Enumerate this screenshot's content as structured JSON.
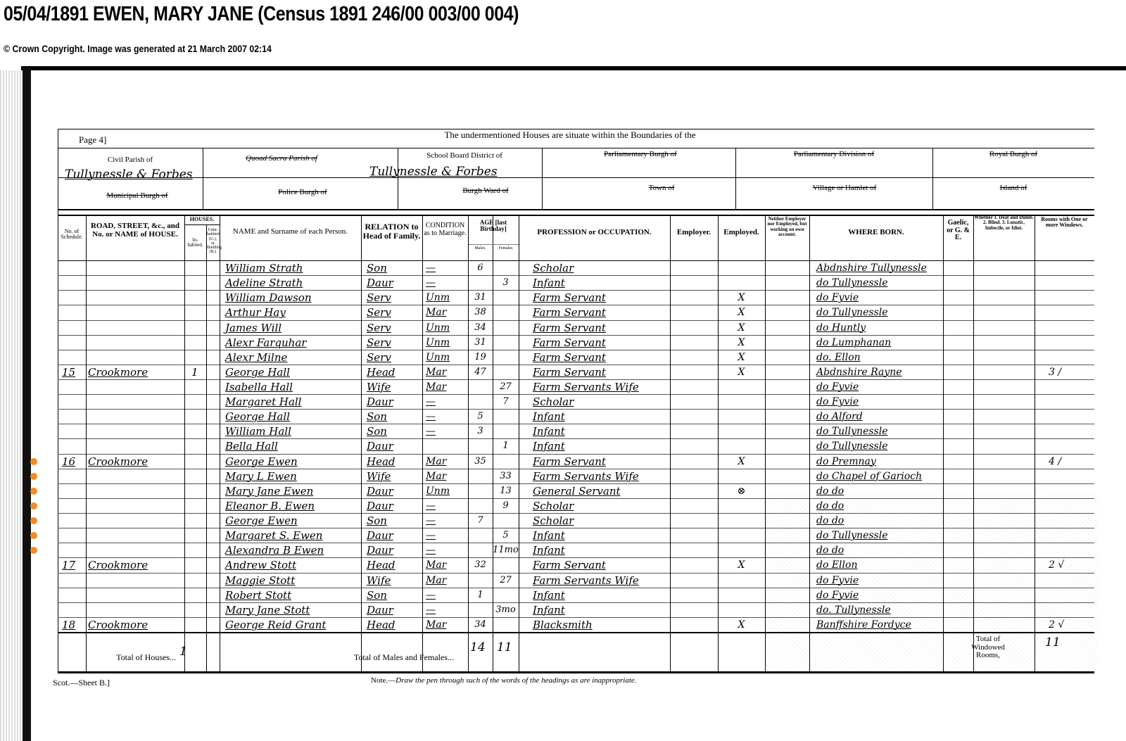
{
  "header": {
    "title": "05/04/1891 EWEN, MARY JANE (Census 1891 246/00 003/00 004)",
    "copyright": "© Crown Copyright. Image was generated at 21 March 2007 02:14"
  },
  "form": {
    "page": "Page 4]",
    "boundaries": "The undermentioned Houses are situate within the Boundaries of the",
    "civil_parish_label": "Civil Parish of",
    "civil_parish_value": "Tullynessle & Forbes",
    "quoad_sacra_label": "Quoad Sacra Parish of",
    "school_board_label": "School Board District of",
    "school_board_value": "Tullynessle & Forbes",
    "parl_burgh_label": "Parliamentary Burgh of",
    "parl_division_label": "Parliamentary Division of",
    "royal_burgh_label": "Royal Burgh of",
    "municipal_burgh_label": "Municipal Burgh of",
    "police_burgh_label": "Police Burgh of",
    "burgh_ward_label": "Burgh Ward of",
    "town_label": "Town of",
    "village_label": "Village or Hamlet of",
    "island_label": "Island of"
  },
  "columns": {
    "schedule": "No. of Schedule.",
    "house": "ROAD, STREET, &c., and No. or NAME of HOUSE.",
    "houses": "HOUSES.",
    "inhabited": "In-habited.",
    "uninhabited": "Unin-habited (U.), or Building (B.)",
    "name": "NAME and Surname of each Person.",
    "relation": "RELATION to Head of Family.",
    "condition": "CONDITION as to Marriage.",
    "age": "AGE [last Birthday]",
    "males": "Males.",
    "females": "Females",
    "occupation": "PROFESSION or OCCUPATION.",
    "employer": "Employer.",
    "employed": "Employed.",
    "neither": "Neither Employer nor Employed, but working on own account.",
    "where_born": "WHERE BORN.",
    "gaelic": "Gaelic, or G. & E.",
    "whether": "Whether 1. Deaf and Dumb. 2. Blind. 3. Lunatic, Imbecile, or Idiot.",
    "rooms": "Rooms with One or more Windows."
  },
  "rows": [
    {
      "schedule": "",
      "house": "",
      "inhabited": "",
      "name": "William Strath",
      "relation": "Son",
      "condition": "—",
      "males": "6",
      "females": "",
      "occupation": "Scholar",
      "employed": "",
      "where_born": "Abdnshire Tullynessle",
      "rooms": ""
    },
    {
      "schedule": "",
      "house": "",
      "inhabited": "",
      "name": "Adeline Strath",
      "relation": "Daur",
      "condition": "—",
      "males": "",
      "females": "3",
      "occupation": "Infant",
      "employed": "",
      "where_born": "do Tullynessle",
      "rooms": ""
    },
    {
      "schedule": "",
      "house": "",
      "inhabited": "",
      "name": "William Dawson",
      "relation": "Serv",
      "condition": "Unm",
      "males": "31",
      "females": "",
      "occupation": "Farm Servant",
      "employed": "X",
      "where_born": "do Fyvie",
      "rooms": ""
    },
    {
      "schedule": "",
      "house": "",
      "inhabited": "",
      "name": "Arthur Hay",
      "relation": "Serv",
      "condition": "Mar",
      "males": "38",
      "females": "",
      "occupation": "Farm Servant",
      "employed": "X",
      "where_born": "do Tullynessle",
      "rooms": ""
    },
    {
      "schedule": "",
      "house": "",
      "inhabited": "",
      "name": "James Will",
      "relation": "Serv",
      "condition": "Unm",
      "males": "34",
      "females": "",
      "occupation": "Farm Servant",
      "employed": "X",
      "where_born": "do Huntly",
      "rooms": ""
    },
    {
      "schedule": "",
      "house": "",
      "inhabited": "",
      "name": "Alexr Farquhar",
      "relation": "Serv",
      "condition": "Unm",
      "males": "31",
      "females": "",
      "occupation": "Farm Servant",
      "employed": "X",
      "where_born": "do Lumphanan",
      "rooms": ""
    },
    {
      "schedule": "",
      "house": "",
      "inhabited": "",
      "name": "Alexr Milne",
      "relation": "Serv",
      "condition": "Unm",
      "males": "19",
      "females": "",
      "occupation": "Farm Servant",
      "employed": "X",
      "where_born": "do. Ellon",
      "rooms": ""
    },
    {
      "schedule": "15",
      "house": "Crookmore",
      "inhabited": "1",
      "name": "George Hall",
      "relation": "Head",
      "condition": "Mar",
      "males": "47",
      "females": "",
      "occupation": "Farm Servant",
      "employed": "X",
      "where_born": "Abdnshire Rayne",
      "rooms": "3 /"
    },
    {
      "schedule": "",
      "house": "",
      "inhabited": "",
      "name": "Isabella Hall",
      "relation": "Wife",
      "condition": "Mar",
      "males": "",
      "females": "27",
      "occupation": "Farm Servants Wife",
      "employed": "",
      "where_born": "do Fyvie",
      "rooms": ""
    },
    {
      "schedule": "",
      "house": "",
      "inhabited": "",
      "name": "Margaret Hall",
      "relation": "Daur",
      "condition": "—",
      "males": "",
      "females": "7",
      "occupation": "Scholar",
      "employed": "",
      "where_born": "do Fyvie",
      "rooms": ""
    },
    {
      "schedule": "",
      "house": "",
      "inhabited": "",
      "name": "George Hall",
      "relation": "Son",
      "condition": "—",
      "males": "5",
      "females": "",
      "occupation": "Infant",
      "employed": "",
      "where_born": "do Alford",
      "rooms": ""
    },
    {
      "schedule": "",
      "house": "",
      "inhabited": "",
      "name": "William Hall",
      "relation": "Son",
      "condition": "—",
      "males": "3",
      "females": "",
      "occupation": "Infant",
      "employed": "",
      "where_born": "do Tullynessle",
      "rooms": ""
    },
    {
      "schedule": "",
      "house": "",
      "inhabited": "",
      "name": "Bella Hall",
      "relation": "Daur",
      "condition": "",
      "males": "",
      "females": "1",
      "occupation": "Infant",
      "employed": "",
      "where_born": "do Tullynessle",
      "rooms": ""
    },
    {
      "schedule": "16",
      "house": "Crookmore",
      "inhabited": "",
      "name": "George Ewen",
      "relation": "Head",
      "condition": "Mar",
      "males": "35",
      "females": "",
      "occupation": "Farm Servant",
      "employed": "X",
      "where_born": "do Premnay",
      "rooms": "4 /"
    },
    {
      "schedule": "",
      "house": "",
      "inhabited": "",
      "name": "Mary L Ewen",
      "relation": "Wife",
      "condition": "Mar",
      "males": "",
      "females": "33",
      "occupation": "Farm Servants Wife",
      "employed": "",
      "where_born": "do Chapel of Garioch",
      "rooms": ""
    },
    {
      "schedule": "",
      "house": "",
      "inhabited": "",
      "name": "Mary Jane Ewen",
      "relation": "Daur",
      "condition": "Unm",
      "males": "",
      "females": "13",
      "occupation": "General Servant",
      "employed": "⊗",
      "where_born": "do do",
      "rooms": ""
    },
    {
      "schedule": "",
      "house": "",
      "inhabited": "",
      "name": "Eleanor B. Ewen",
      "relation": "Daur",
      "condition": "—",
      "males": "",
      "females": "9",
      "occupation": "Scholar",
      "employed": "",
      "where_born": "do do",
      "rooms": ""
    },
    {
      "schedule": "",
      "house": "",
      "inhabited": "",
      "name": "George Ewen",
      "relation": "Son",
      "condition": "—",
      "males": "7",
      "females": "",
      "occupation": "Scholar",
      "employed": "",
      "where_born": "do do",
      "rooms": ""
    },
    {
      "schedule": "",
      "house": "",
      "inhabited": "",
      "name": "Margaret S. Ewen",
      "relation": "Daur",
      "condition": "—",
      "males": "",
      "females": "5",
      "occupation": "Infant",
      "employed": "",
      "where_born": "do Tullynessle",
      "rooms": ""
    },
    {
      "schedule": "",
      "house": "",
      "inhabited": "",
      "name": "Alexandra B Ewen",
      "relation": "Daur",
      "condition": "—",
      "males": "",
      "females": "11mo",
      "occupation": "Infant",
      "employed": "",
      "where_born": "do do",
      "rooms": ""
    },
    {
      "schedule": "17",
      "house": "Crookmore",
      "inhabited": "",
      "name": "Andrew Stott",
      "relation": "Head",
      "condition": "Mar",
      "males": "32",
      "females": "",
      "occupation": "Farm Servant",
      "employed": "X",
      "where_born": "do Ellon",
      "rooms": "2 √"
    },
    {
      "schedule": "",
      "house": "",
      "inhabited": "",
      "name": "Maggie Stott",
      "relation": "Wife",
      "condition": "Mar",
      "males": "",
      "females": "27",
      "occupation": "Farm Servants Wife",
      "employed": "",
      "where_born": "do Fyvie",
      "rooms": ""
    },
    {
      "schedule": "",
      "house": "",
      "inhabited": "",
      "name": "Robert Stott",
      "relation": "Son",
      "condition": "—",
      "males": "1",
      "females": "",
      "occupation": "Infant",
      "employed": "",
      "where_born": "do Fyvie",
      "rooms": ""
    },
    {
      "schedule": "",
      "house": "",
      "inhabited": "",
      "name": "Mary Jane Stott",
      "relation": "Daur",
      "condition": "—",
      "males": "",
      "females": "3mo",
      "occupation": "Infant",
      "employed": "",
      "where_born": "do. Tullynessle",
      "rooms": ""
    },
    {
      "schedule": "18",
      "house": "Crookmore",
      "inhabited": "",
      "name": "George Reid Grant",
      "relation": "Head",
      "condition": "Mar",
      "males": "34",
      "females": "",
      "occupation": "Blacksmith",
      "employed": "X",
      "where_born": "Banffshire Fordyce",
      "rooms": "2 √"
    }
  ],
  "totals": {
    "houses_label": "Total of Houses...",
    "houses_value": "1",
    "persons_label": "Total of Males and Females...",
    "males": "14",
    "females": "11",
    "rooms_label": "Total of Windowed Rooms,",
    "rooms_value": "11"
  },
  "footer": {
    "sheet": "Scot.—Sheet B.]",
    "note_prefix": "Note.—",
    "note": "Draw the pen through such of the words of the headings as are inappropriate."
  },
  "markers": {
    "color": "#f08c2a",
    "rows": [
      13,
      14,
      15,
      16,
      17,
      18,
      19
    ]
  }
}
